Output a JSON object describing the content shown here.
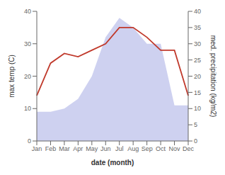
{
  "chart_data": {
    "type": "line",
    "categories": [
      "Jan",
      "Feb",
      "Mar",
      "Apr",
      "May",
      "Jun",
      "Jul",
      "Aug",
      "Sep",
      "Oct",
      "Nov",
      "Dec"
    ],
    "xlabel": "date (month)",
    "ylabel": "max temp (C)",
    "y2label": "med. precipitation (kg/m2)",
    "ylim": [
      0,
      40
    ],
    "yticks": [
      0,
      10,
      20,
      30,
      40
    ],
    "y2lim": [
      0,
      40
    ],
    "y2ticks": [
      0,
      5,
      10,
      15,
      20,
      25,
      30,
      35,
      40
    ],
    "grid": false,
    "series": [
      {
        "type": "area",
        "axis": "y2",
        "color": "#b3b9e8",
        "values": [
          9,
          9,
          10,
          13,
          20,
          32,
          38,
          35,
          30,
          30,
          11,
          11
        ]
      },
      {
        "type": "line",
        "color": "#c0392b",
        "values": [
          14,
          24,
          27,
          26,
          28,
          30,
          35,
          35,
          32,
          28,
          28,
          14
        ]
      }
    ]
  }
}
